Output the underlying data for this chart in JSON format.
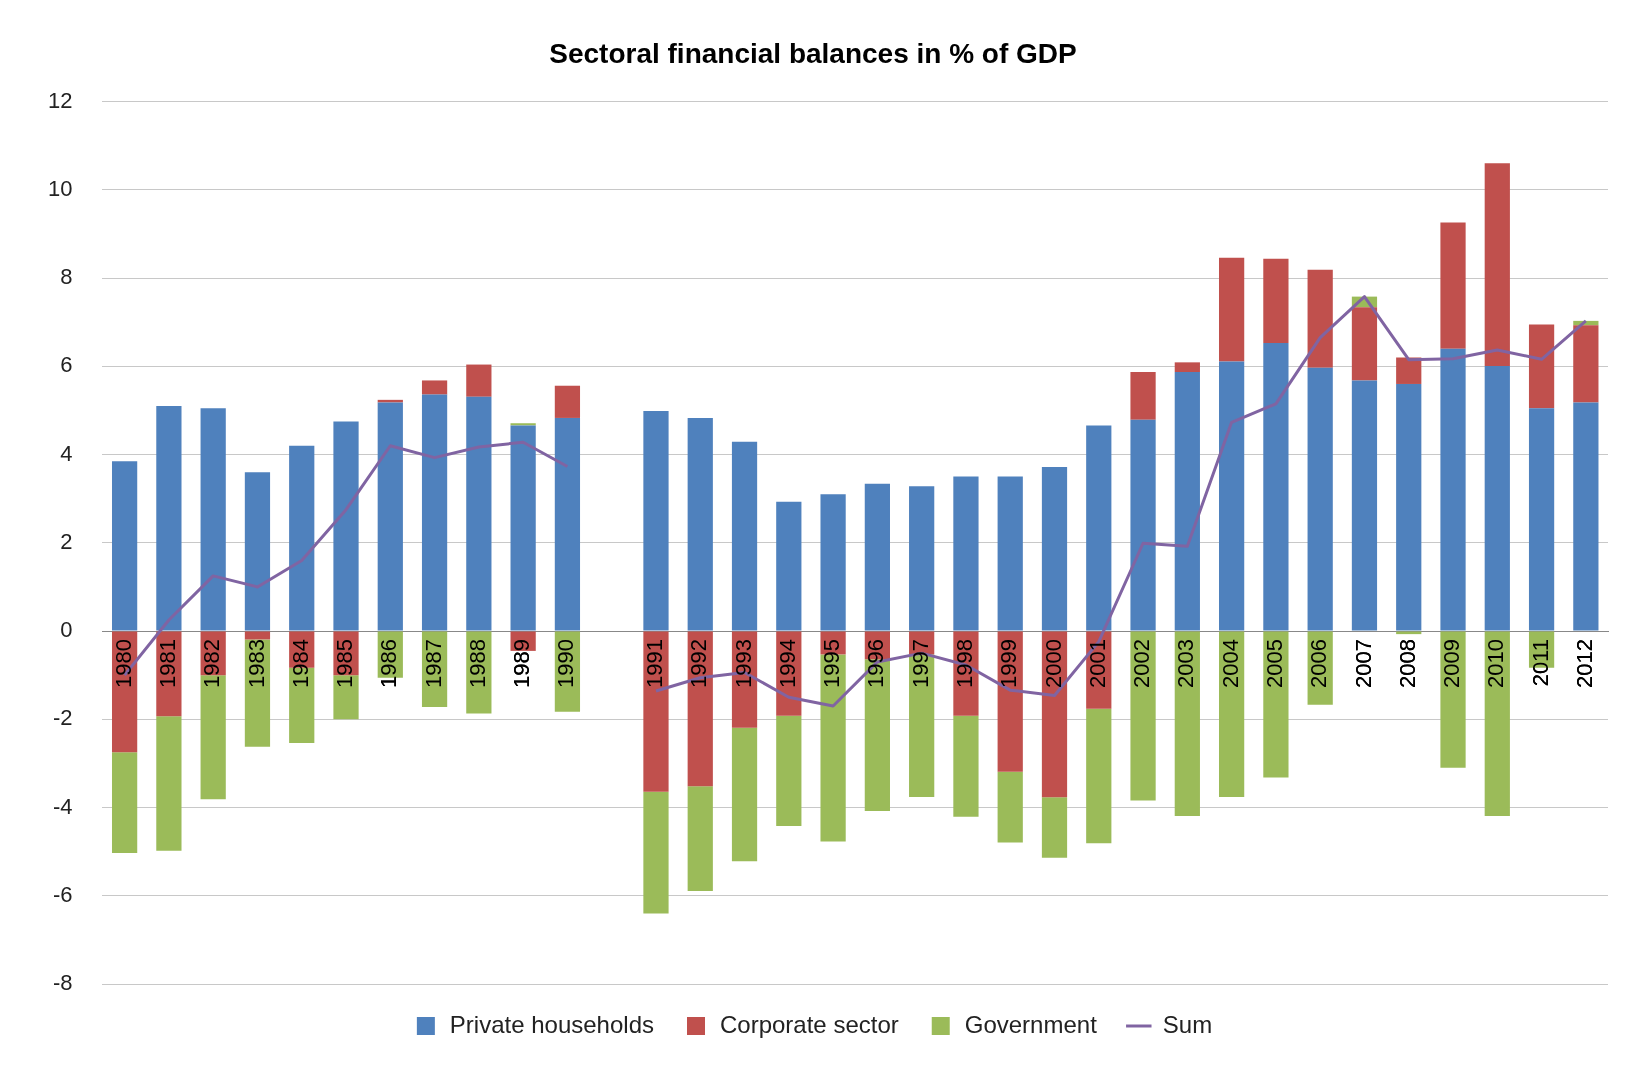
{
  "chart_data": {
    "type": "bar",
    "title": "Sectoral financial balances in % of GDP",
    "stacked": true,
    "legend": "bottom",
    "grid": "y",
    "marker": "none",
    "ylim": [
      -8,
      12
    ],
    "yticks": [
      -8,
      -6,
      -4,
      -2,
      0,
      2,
      4,
      6,
      8,
      10,
      12
    ],
    "categories": [
      "1980",
      "1981",
      "1982",
      "1983",
      "1984",
      "1985",
      "1986",
      "1987",
      "1988",
      "1989",
      "1990",
      null,
      "1991",
      "1992",
      "1993",
      "1994",
      "1995",
      "1996",
      "1997",
      "1998",
      "1999",
      "2000",
      "2001",
      "2002",
      "2003",
      "2004",
      "2005",
      "2006",
      "2007",
      "2008",
      "2009",
      "2010",
      "2011",
      "2012"
    ],
    "series": [
      {
        "name": "Private households",
        "color": "#4f81bd",
        "values": [
          3.85,
          5.1,
          5.05,
          3.6,
          4.2,
          4.75,
          5.18,
          5.36,
          5.31,
          4.66,
          4.83,
          null,
          4.99,
          4.83,
          4.29,
          2.93,
          3.1,
          3.34,
          3.28,
          3.5,
          3.5,
          3.72,
          4.66,
          4.79,
          5.87,
          6.11,
          6.53,
          5.97,
          5.68,
          5.6,
          6.4,
          6.01,
          5.05,
          5.18
        ]
      },
      {
        "name": "Corporate sector",
        "color": "#c0504d",
        "values": [
          -2.75,
          -1.93,
          -1.0,
          -0.19,
          -0.83,
          -1.0,
          0.06,
          0.32,
          0.73,
          -0.45,
          0.73,
          null,
          -3.64,
          -3.52,
          -2.19,
          -1.92,
          -0.53,
          -0.64,
          -0.53,
          -1.92,
          -3.19,
          -3.77,
          -1.76,
          1.08,
          0.22,
          2.35,
          1.91,
          2.22,
          1.66,
          0.6,
          2.86,
          4.59,
          1.9,
          1.75
        ]
      },
      {
        "name": "Government",
        "color": "#9bbb59",
        "values": [
          -2.28,
          -3.05,
          -2.81,
          -2.43,
          -1.71,
          -1.0,
          -1.06,
          -1.72,
          -1.87,
          0.05,
          -1.83,
          null,
          -2.76,
          -2.37,
          -3.03,
          -2.5,
          -4.24,
          -3.44,
          -3.23,
          -2.29,
          -1.6,
          -1.37,
          -3.05,
          -3.84,
          -4.19,
          -3.76,
          -3.32,
          -1.67,
          0.24,
          -0.07,
          -3.1,
          -4.19,
          -0.83,
          0.1
        ]
      },
      {
        "name": "Sum",
        "type": "line",
        "color": "#8064a2",
        "values": [
          -1.0,
          0.25,
          1.25,
          1.0,
          1.6,
          2.75,
          4.2,
          3.93,
          4.17,
          4.28,
          3.73,
          null,
          -1.36,
          -1.06,
          -0.94,
          -1.5,
          -1.7,
          -0.7,
          -0.5,
          -0.77,
          -1.34,
          -1.46,
          -0.24,
          1.99,
          1.92,
          4.73,
          5.15,
          6.65,
          7.58,
          6.15,
          6.17,
          6.37,
          6.16,
          7.03
        ]
      }
    ]
  }
}
